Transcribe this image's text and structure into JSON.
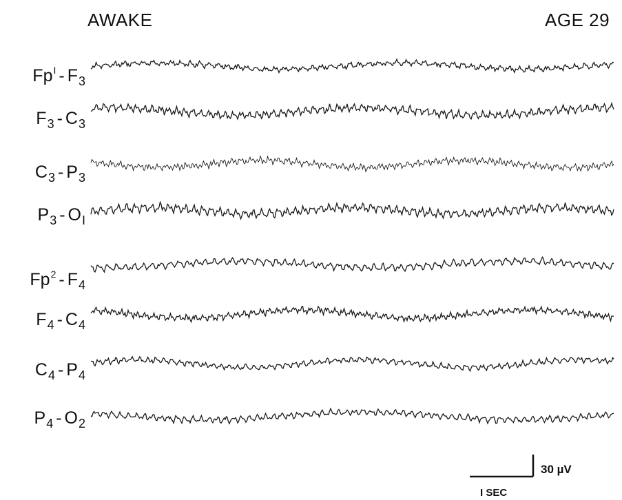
{
  "header": {
    "state": "AWAKE",
    "age": "AGE 29"
  },
  "chart_data": {
    "type": "line",
    "title": "",
    "xlabel": "",
    "ylabel": "",
    "channels": [
      {
        "name": "Fp1-F3",
        "anode": "Fp",
        "anode_sub": "",
        "anode_sup": "I",
        "cathode": "F",
        "cathode_sub": "3",
        "cathode_sup": ""
      },
      {
        "name": "F3-C3",
        "anode": "F",
        "anode_sub": "3",
        "anode_sup": "",
        "cathode": "C",
        "cathode_sub": "3",
        "cathode_sup": ""
      },
      {
        "name": "C3-P3",
        "anode": "C",
        "anode_sub": "3",
        "anode_sup": "",
        "cathode": "P",
        "cathode_sub": "3",
        "cathode_sup": ""
      },
      {
        "name": "P3-O1",
        "anode": "P",
        "anode_sub": "3",
        "anode_sup": "",
        "cathode": "O",
        "cathode_sub": "I",
        "cathode_sup": ""
      },
      {
        "name": "Fp2-F4",
        "anode": "Fp",
        "anode_sub": "",
        "anode_sup": "2",
        "cathode": "F",
        "cathode_sub": "4",
        "cathode_sup": ""
      },
      {
        "name": "F4-C4",
        "anode": "F",
        "anode_sub": "4",
        "anode_sup": "",
        "cathode": "C",
        "cathode_sub": "4",
        "cathode_sup": ""
      },
      {
        "name": "C4-P4",
        "anode": "C",
        "anode_sub": "4",
        "anode_sup": "",
        "cathode": "P",
        "cathode_sub": "4",
        "cathode_sup": ""
      },
      {
        "name": "P4-O2",
        "anode": "P",
        "anode_sub": "4",
        "anode_sup": "",
        "cathode": "O",
        "cathode_sub": "2",
        "cathode_sup": ""
      }
    ],
    "calibration": {
      "amplitude_label": "30 µV",
      "amplitude_uv": 30,
      "time_label": "I SEC",
      "time_s": 1
    },
    "grid": false,
    "legend": "none"
  },
  "colors": {
    "trace": "#1a1a1a",
    "background": "#ffffff"
  }
}
